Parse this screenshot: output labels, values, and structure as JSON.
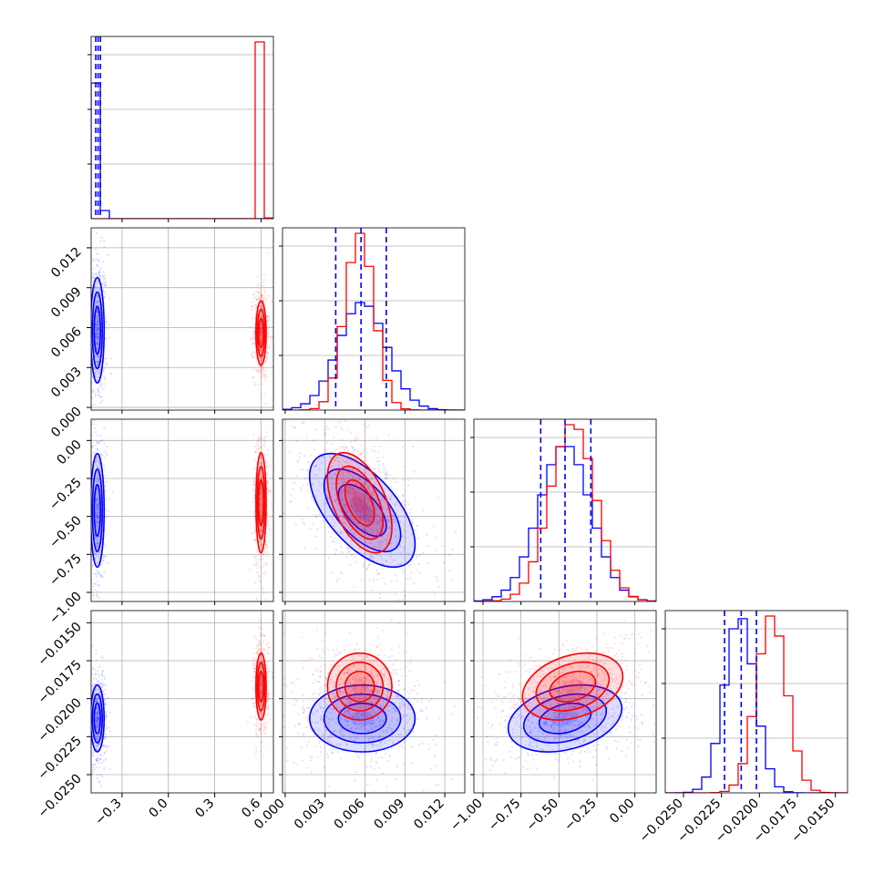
{
  "chart_data": {
    "type": "corner",
    "grid": true,
    "series": [
      {
        "color": "#0000ff",
        "params": {
          "p0": {
            "mean": -0.46,
            "sd": 0.02
          },
          "p1": {
            "mean": 0.0058,
            "sd": 0.0018
          },
          "p2": {
            "mean": -0.46,
            "sd": 0.17
          },
          "p3": {
            "mean": -0.0213,
            "sd": 0.001
          }
        },
        "correlations": {
          "p1_p2": -0.6,
          "p1_p3": 0.0,
          "p2_p3": 0.3,
          "p0_p2": 0.0
        }
      },
      {
        "color": "#ff0000",
        "params": {
          "p0": {
            "mean": 0.6,
            "sd": 0.015
          },
          "p1": {
            "mean": 0.0056,
            "sd": 0.0011
          },
          "p2": {
            "mean": -0.41,
            "sd": 0.15
          },
          "p3": {
            "mean": -0.0192,
            "sd": 0.001
          }
        },
        "correlations": {
          "p1_p2": -0.5,
          "p1_p3": 0.0,
          "p2_p3": 0.3,
          "p0_p2": 0.0
        }
      }
    ],
    "quantile_lines": {
      "color": "#0000ff",
      "p0": [
        -0.47,
        -0.455,
        -0.44
      ],
      "p1": [
        0.0038,
        0.0057,
        0.0076
      ],
      "p2": [
        -0.62,
        -0.46,
        -0.29
      ],
      "p3": [
        -0.0223,
        -0.0212,
        -0.0202
      ]
    },
    "ranges": {
      "p0": [
        -0.5,
        0.68
      ],
      "p1": [
        -0.0002,
        0.0135
      ],
      "p2": [
        -1.06,
        0.14
      ],
      "p3": [
        -0.0262,
        -0.0142
      ]
    },
    "tick_labels": {
      "p0": [
        "−0.3",
        "0.0",
        "0.3",
        "0.6"
      ],
      "p1": [
        "0.000",
        "0.003",
        "0.006",
        "0.009",
        "0.012"
      ],
      "p2": [
        "−1.00",
        "−0.75",
        "−0.50",
        "−0.25",
        "0.00"
      ],
      "p3": [
        "−0.0250",
        "−0.0225",
        "−0.0200",
        "−0.0175",
        "−0.0150"
      ]
    },
    "tick_values": {
      "p0": [
        -0.3,
        0.0,
        0.3,
        0.6
      ],
      "p1": [
        0.0,
        0.003,
        0.006,
        0.009,
        0.012
      ],
      "p2": [
        -1.0,
        -0.75,
        -0.5,
        -0.25,
        0.0
      ],
      "p3": [
        -0.025,
        -0.0225,
        -0.02,
        -0.0175,
        -0.015
      ]
    }
  }
}
